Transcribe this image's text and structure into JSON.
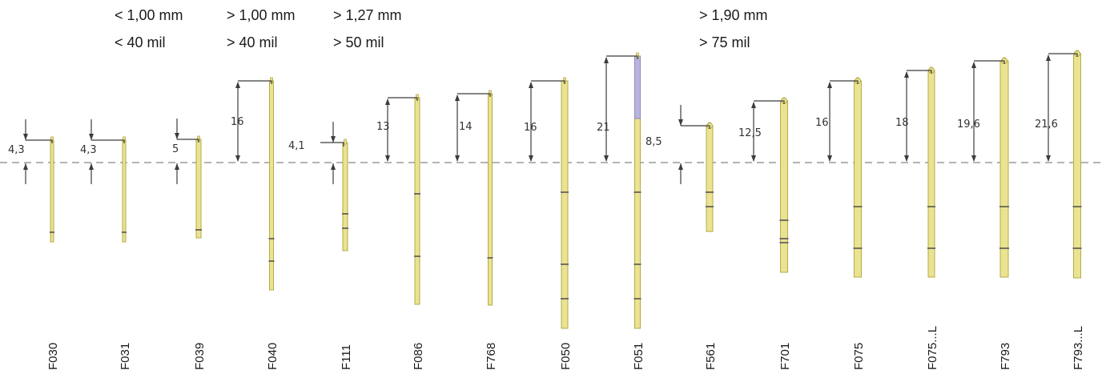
{
  "header": {
    "groups": [
      {
        "mm": "< 1,00 mm",
        "mil": "< 40 mil"
      },
      {
        "mm": "> 1,00 mm",
        "mil": "> 40 mil"
      },
      {
        "mm": "> 1,27 mm",
        "mil": "> 50 mil"
      },
      {
        "mm": "> 1,90 mm",
        "mil": "> 75 mil"
      }
    ]
  },
  "probes": [
    {
      "code": "F030",
      "dim": "4,3"
    },
    {
      "code": "F031",
      "dim": "4,3"
    },
    {
      "code": "F039",
      "dim": "5"
    },
    {
      "code": "F040",
      "dim": "16"
    },
    {
      "code": "F111",
      "dim": "4,1"
    },
    {
      "code": "F086",
      "dim": "13"
    },
    {
      "code": "F768",
      "dim": "14"
    },
    {
      "code": "F050",
      "dim": "16"
    },
    {
      "code": "F051",
      "dim": "21"
    },
    {
      "code": "F561",
      "dim": "8,5"
    },
    {
      "code": "F701",
      "dim": "12,5"
    },
    {
      "code": "F075",
      "dim": "16"
    },
    {
      "code": "F075...L",
      "dim": "18"
    },
    {
      "code": "F793",
      "dim": "19,6"
    },
    {
      "code": "F793...L",
      "dim": "21,6"
    }
  ],
  "colors": {
    "body": "#eae391",
    "body_stroke": "#b6ab4a",
    "tip_purple": "#b8b4dc",
    "line": "#3c3c3c",
    "dash": "#9a9a9a"
  }
}
